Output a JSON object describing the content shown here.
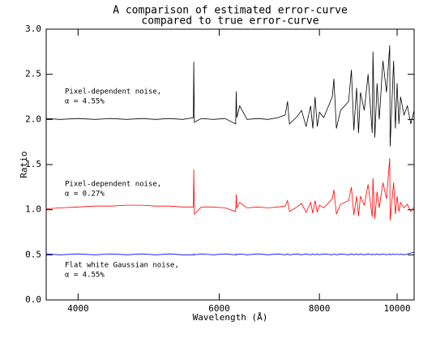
{
  "chart_data": {
    "type": "line",
    "title": [
      "A comparison of estimated error-curve",
      "compared to true error-curve"
    ],
    "x_label": "Wavelength (Å)",
    "y_label": "Ratio",
    "x_scale": "log",
    "xlim": [
      3650,
      10500
    ],
    "xticks": [
      4000,
      6000,
      8000,
      10000
    ],
    "ylim": [
      0,
      3.0
    ],
    "yticks": [
      {
        "value": 0,
        "label": "0.0"
      },
      {
        "value": 0.5,
        "label": "0.5"
      },
      {
        "value": 1,
        "label": "1.0"
      },
      {
        "value": 1.5,
        "label": "1.5"
      },
      {
        "value": 2,
        "label": "2.0"
      },
      {
        "value": 2.5,
        "label": "2.5"
      },
      {
        "value": 3,
        "label": "3.0"
      }
    ],
    "annotations": [
      [
        "Pixel-dependent noise,",
        "α = 4.55%"
      ],
      [
        "Pixel-dependent noise,",
        "α = 0.27%"
      ],
      [
        "Flat white Gaussian noise,",
        "α = 4.55%"
      ]
    ],
    "x": [
      3650,
      3800,
      4000,
      4200,
      4400,
      4600,
      4800,
      5000,
      5200,
      5400,
      5570,
      5577,
      5585,
      5700,
      5900,
      6100,
      6290,
      6300,
      6310,
      6363,
      6500,
      6700,
      6900,
      7100,
      7250,
      7300,
      7340,
      7500,
      7600,
      7700,
      7800,
      7850,
      7900,
      7950,
      8000,
      8100,
      8300,
      8340,
      8400,
      8500,
      8700,
      8770,
      8830,
      8900,
      8950,
      9000,
      9100,
      9200,
      9310,
      9330,
      9380,
      9440,
      9500,
      9600,
      9700,
      9790,
      9800,
      9900,
      9950,
      10000,
      10050,
      10100,
      10200,
      10300,
      10400,
      10500
    ],
    "series": [
      {
        "color": "#000000",
        "values": [
          2.01,
          2.0,
          2.01,
          2.0,
          2.01,
          2.0,
          2.01,
          2.0,
          2.01,
          2.0,
          2.02,
          2.64,
          1.97,
          2.01,
          2.0,
          2.01,
          1.95,
          2.31,
          2.02,
          2.15,
          2.0,
          2.01,
          2.0,
          2.02,
          2.05,
          2.2,
          1.95,
          2.03,
          2.1,
          1.92,
          2.15,
          1.9,
          2.25,
          1.92,
          2.08,
          2.02,
          2.25,
          2.45,
          1.9,
          2.1,
          2.2,
          2.55,
          1.88,
          2.35,
          1.85,
          2.3,
          2.1,
          2.5,
          1.85,
          2.75,
          1.8,
          2.4,
          2.0,
          2.65,
          2.3,
          2.82,
          1.7,
          2.65,
          1.9,
          2.4,
          1.95,
          2.25,
          2.05,
          2.15,
          1.95,
          2.1
        ]
      },
      {
        "color": "#ff0000",
        "values": [
          1.01,
          1.02,
          1.03,
          1.04,
          1.04,
          1.05,
          1.05,
          1.04,
          1.04,
          1.03,
          1.03,
          1.45,
          0.95,
          1.03,
          1.03,
          1.02,
          0.98,
          1.17,
          1.02,
          1.08,
          1.02,
          1.03,
          1.02,
          1.03,
          1.04,
          1.1,
          0.98,
          1.03,
          1.07,
          0.97,
          1.08,
          0.96,
          1.1,
          0.97,
          1.05,
          1.02,
          1.12,
          1.22,
          0.95,
          1.06,
          1.1,
          1.25,
          0.94,
          1.15,
          0.93,
          1.15,
          1.05,
          1.28,
          0.92,
          1.35,
          0.9,
          1.2,
          1.02,
          1.3,
          1.12,
          1.57,
          0.88,
          1.3,
          0.95,
          1.15,
          0.98,
          1.08,
          1.02,
          1.06,
          0.98,
          1.03
        ]
      },
      {
        "color": "#0000ff",
        "values": [
          0.51,
          0.5,
          0.51,
          0.5,
          0.51,
          0.5,
          0.51,
          0.5,
          0.51,
          0.5,
          0.5,
          0.51,
          0.5,
          0.51,
          0.5,
          0.51,
          0.5,
          0.51,
          0.5,
          0.51,
          0.5,
          0.51,
          0.5,
          0.51,
          0.5,
          0.51,
          0.5,
          0.51,
          0.5,
          0.51,
          0.5,
          0.51,
          0.5,
          0.51,
          0.5,
          0.51,
          0.5,
          0.51,
          0.5,
          0.51,
          0.5,
          0.51,
          0.5,
          0.51,
          0.5,
          0.51,
          0.5,
          0.51,
          0.5,
          0.51,
          0.5,
          0.51,
          0.5,
          0.51,
          0.5,
          0.51,
          0.5,
          0.51,
          0.5,
          0.51,
          0.5,
          0.51,
          0.5,
          0.51,
          0.52,
          0.53
        ]
      }
    ]
  }
}
